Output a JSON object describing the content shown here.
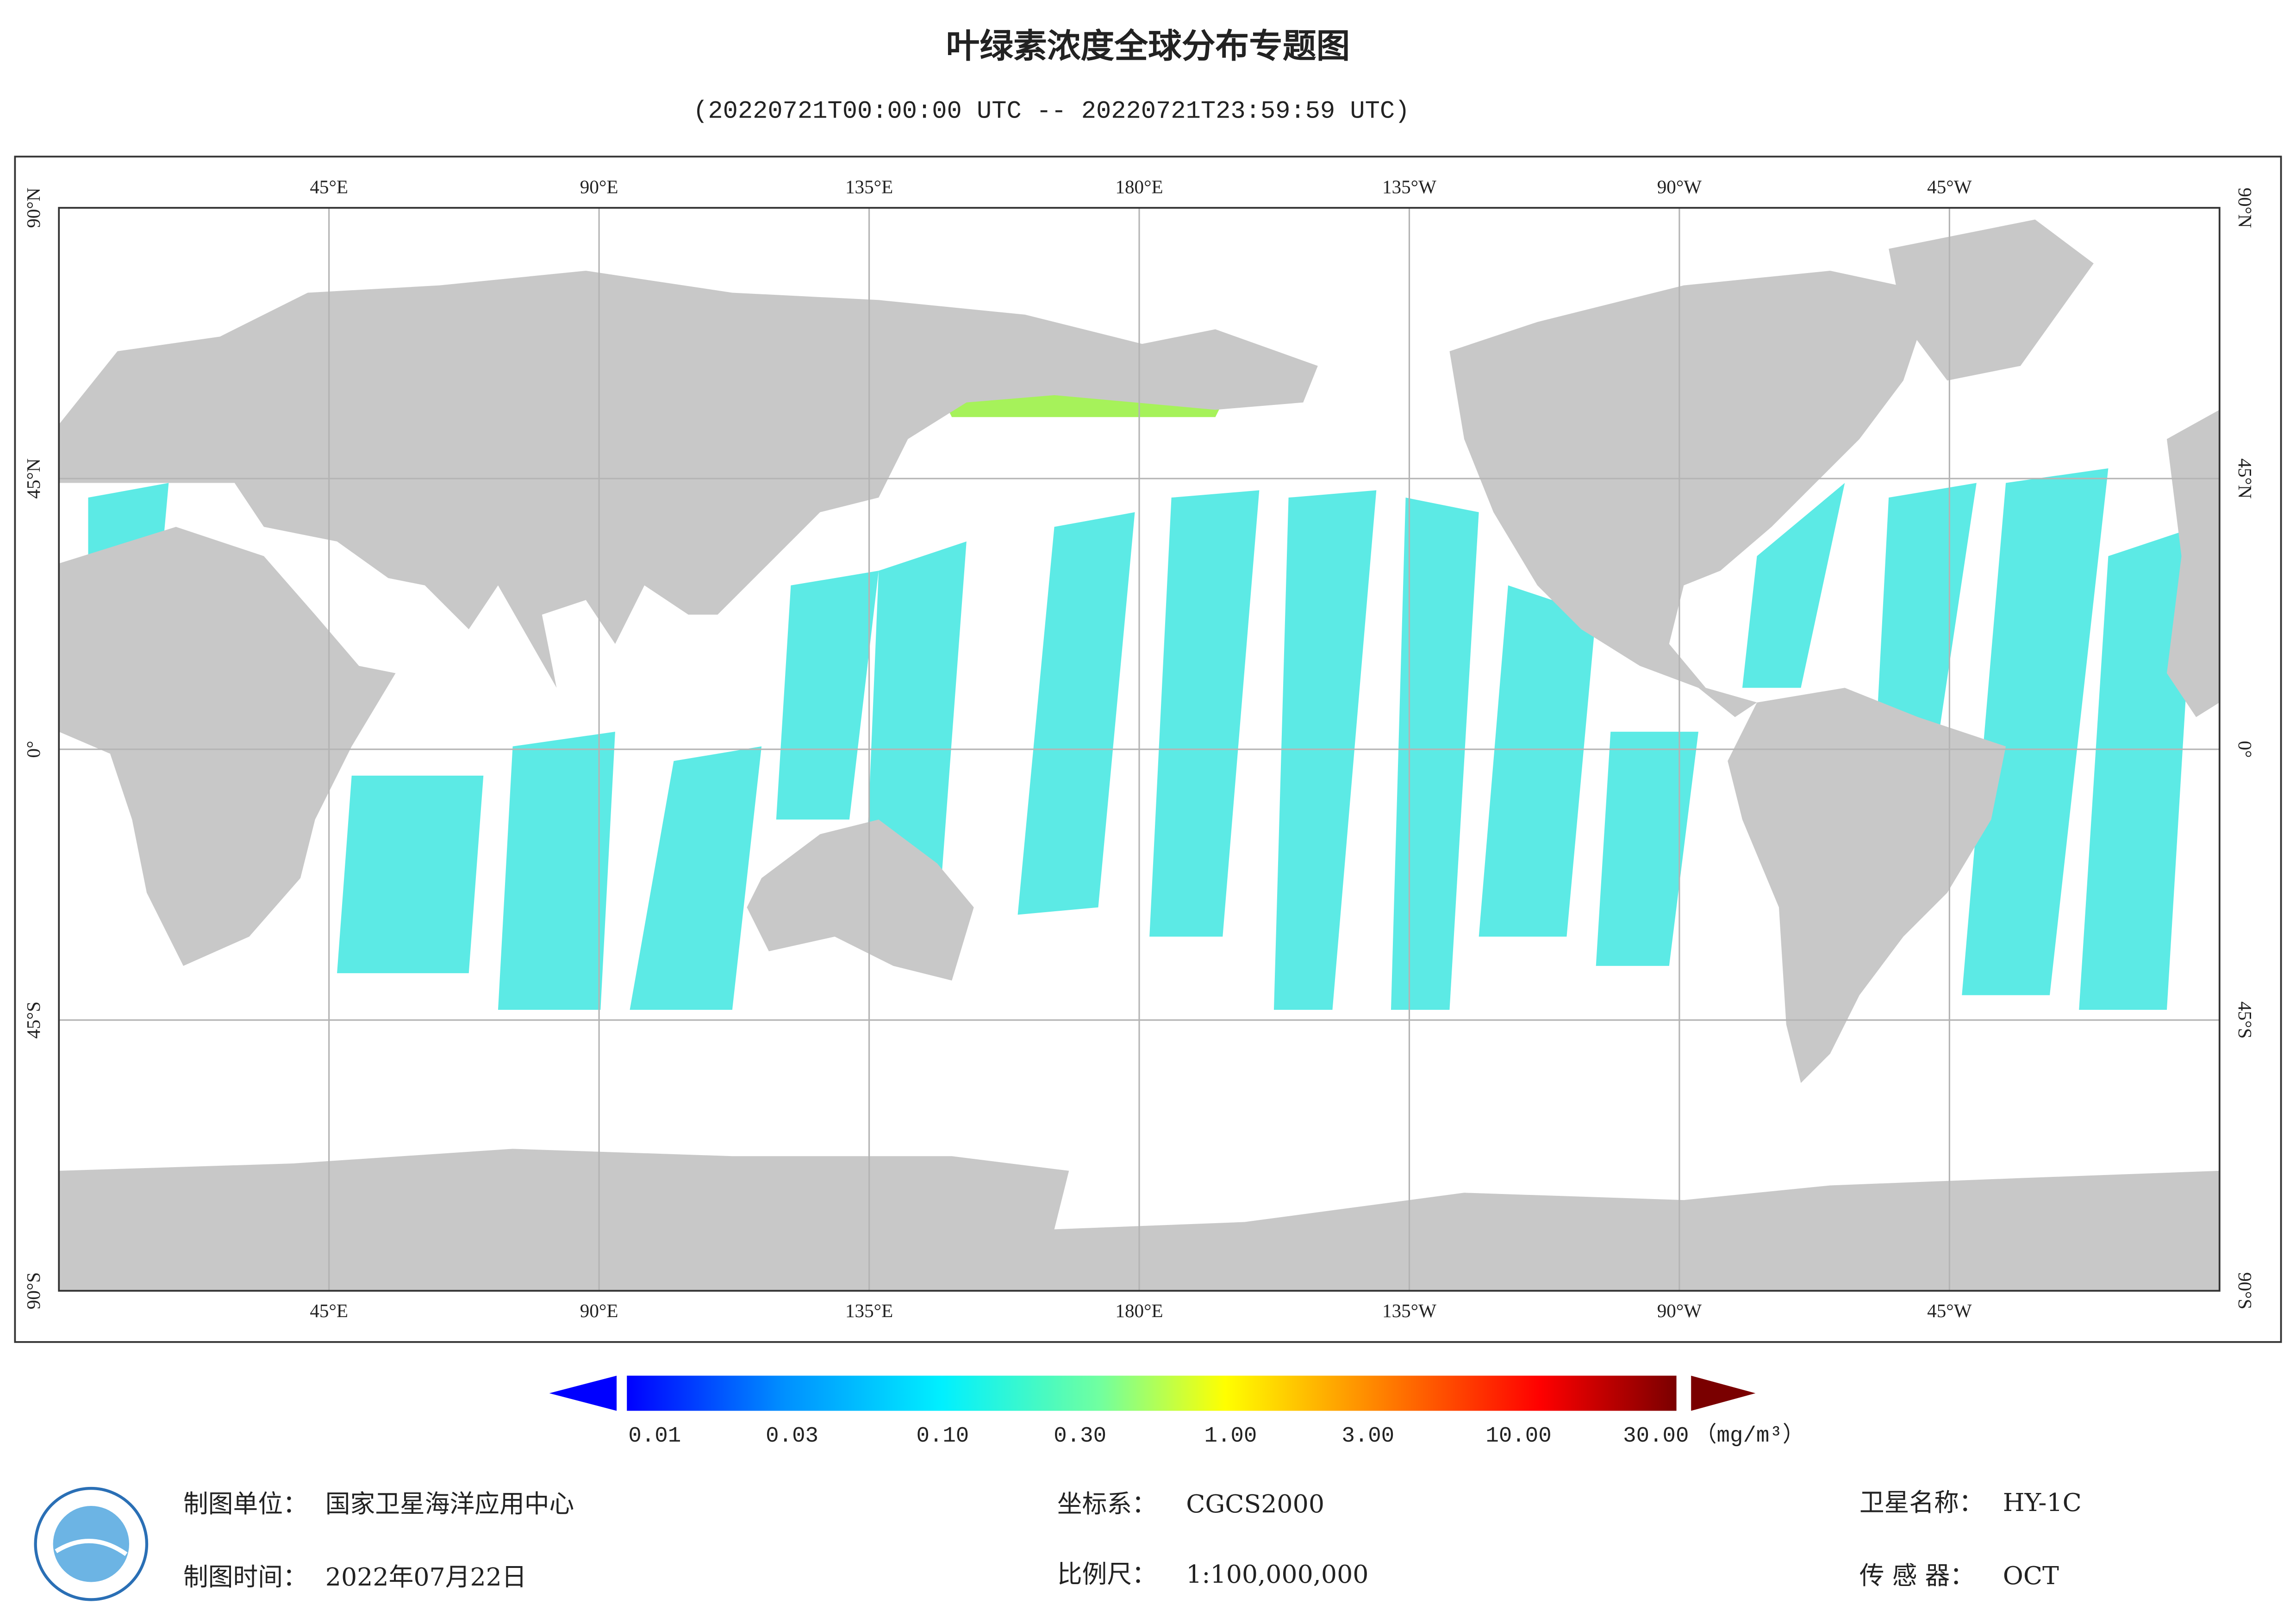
{
  "header": {
    "title": "叶绿素浓度全球分布专题图",
    "subtitle": "(20220721T00:00:00 UTC -- 20220721T23:59:59 UTC)"
  },
  "map": {
    "lon_labels": [
      "45°E",
      "90°E",
      "135°E",
      "180°E",
      "135°W",
      "90°W",
      "45°W"
    ],
    "lat_labels": [
      "90°N",
      "45°N",
      "0°",
      "45°S",
      "90°S"
    ]
  },
  "colorbar": {
    "ticks": [
      0.01,
      0.03,
      {
        "value": 0.1,
        "label": "0.10"
      },
      {
        "value": 0.3,
        "label": "0.30"
      },
      {
        "value": 1,
        "label": "1.00"
      },
      {
        "value": 3,
        "label": "3.00"
      },
      {
        "value": 10,
        "label": "10.00"
      },
      {
        "value": 30,
        "label": "30.00"
      }
    ],
    "unit": "（mg/m³）"
  },
  "footer": {
    "unit_label": "制图单位：",
    "unit": "国家卫星海洋应用中心",
    "time_label": "制图时间：",
    "time": "2022年07月22日",
    "crs_label": "坐标系：",
    "crs": "CGCS2000",
    "scale_label": "比例尺：",
    "scale": "1:100,000,000",
    "satellite_label": "卫星名称：",
    "satellite": "HY-1C",
    "sensor_label": "传 感 器：",
    "sensor": "OCT"
  }
}
